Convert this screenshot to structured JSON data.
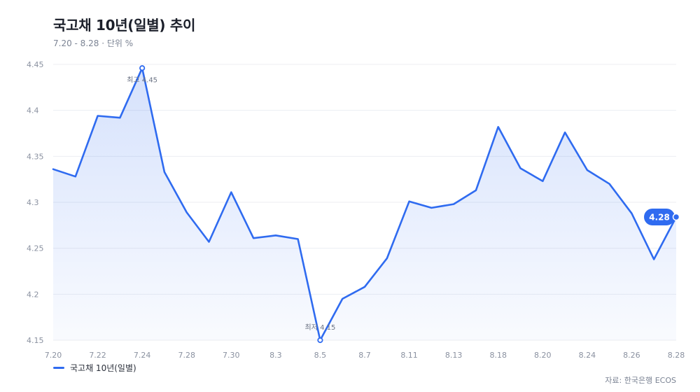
{
  "header": {
    "title": "국고채 10년(일별) 추이",
    "subtitle": "7.20 - 8.28 · 단위 %"
  },
  "legend": {
    "label": "국고채 10년(일별)"
  },
  "footer": {
    "source": "자료: 한국은행 ECOS"
  },
  "colors": {
    "line": "#2f6bf0",
    "grid": "#eceef2",
    "tick": "#8a91a0"
  },
  "chart_data": {
    "type": "area",
    "title": "국고채 10년(일별) 추이",
    "xlabel": "",
    "ylabel": "",
    "ylim": [
      4.15,
      4.45
    ],
    "yticks": [
      "4.15",
      "4.2",
      "4.25",
      "4.3",
      "4.35",
      "4.4",
      "4.45"
    ],
    "xticks": [
      "7.20",
      "7.22",
      "7.24",
      "7.28",
      "7.30",
      "8.3",
      "8.5",
      "8.7",
      "8.11",
      "8.13",
      "8.18",
      "8.20",
      "8.24",
      "8.26",
      "8.28"
    ],
    "grid": true,
    "legend_position": "bottom-left",
    "series": [
      {
        "name": "국고채 10년(일별)",
        "values": [
          4.336,
          4.328,
          4.394,
          4.392,
          4.446,
          4.333,
          4.289,
          4.257,
          4.311,
          4.261,
          4.264,
          4.26,
          4.15,
          4.195,
          4.208,
          4.239,
          4.301,
          4.294,
          4.298,
          4.313,
          4.382,
          4.337,
          4.323,
          4.376,
          4.335,
          4.32,
          4.288,
          4.238,
          4.284
        ]
      }
    ],
    "annotations": {
      "max_label": "최고 4.45",
      "min_label": "최저 4.15",
      "last_label": "4.28"
    }
  }
}
